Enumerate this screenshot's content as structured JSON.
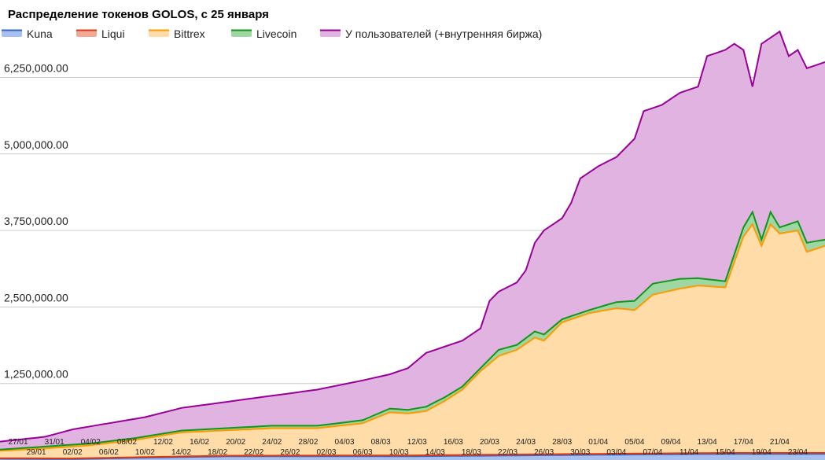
{
  "chart_data": {
    "type": "area",
    "stacked": true,
    "title": "Распределение токенов GOLOS, с 25 января",
    "xlabel": "",
    "ylabel": "",
    "ylim": [
      0,
      7000000
    ],
    "yticks": [
      1250000,
      2500000,
      3750000,
      5000000,
      6250000
    ],
    "ytick_labels": [
      "1,250,000.00",
      "2,500,000.00",
      "3,750,000.00",
      "5,000,000.00",
      "6,250,000.00"
    ],
    "grid": true,
    "legend_position": "top",
    "xtick_labels_upper": [
      "27/01",
      "31/01",
      "04/02",
      "08/02",
      "12/02",
      "16/02",
      "20/02",
      "24/02",
      "28/02",
      "04/03",
      "08/03",
      "12/03",
      "16/03",
      "20/03",
      "24/03",
      "28/03",
      "01/04",
      "05/04",
      "09/04",
      "13/04",
      "17/04",
      "21/04"
    ],
    "xtick_labels_lower": [
      "29/01",
      "02/02",
      "06/02",
      "10/02",
      "14/02",
      "18/02",
      "22/02",
      "26/02",
      "02/03",
      "06/03",
      "10/03",
      "14/03",
      "18/03",
      "22/03",
      "26/03",
      "30/03",
      "03/04",
      "07/04",
      "11/04",
      "15/04",
      "19/04",
      "23/04"
    ],
    "series": [
      {
        "name": "Kuna",
        "color": "#3366cc",
        "fill": "#a7c0ee",
        "cumulative": [
          [
            0,
            20000
          ],
          [
            8,
            15000
          ],
          [
            15,
            35000
          ],
          [
            25,
            60000
          ],
          [
            45,
            60000
          ],
          [
            61,
            80000
          ],
          [
            70,
            90000
          ],
          [
            80,
            100000
          ],
          [
            90,
            100000
          ]
        ]
      },
      {
        "name": "Liqui",
        "color": "#dc3912",
        "fill": "#f2aa96",
        "cumulative": [
          [
            0,
            30000
          ],
          [
            8,
            25000
          ],
          [
            15,
            45000
          ],
          [
            25,
            70000
          ],
          [
            45,
            75000
          ],
          [
            61,
            95000
          ],
          [
            70,
            105000
          ],
          [
            80,
            115000
          ],
          [
            90,
            115000
          ]
        ]
      },
      {
        "name": "Bittrex",
        "color": "#ff9900",
        "fill": "#ffdca8",
        "cumulative": [
          [
            0,
            150000
          ],
          [
            5,
            190000
          ],
          [
            10,
            240000
          ],
          [
            15,
            330000
          ],
          [
            20,
            450000
          ],
          [
            30,
            520000
          ],
          [
            35,
            520000
          ],
          [
            40,
            600000
          ],
          [
            43,
            780000
          ],
          [
            45,
            760000
          ],
          [
            47,
            800000
          ],
          [
            49,
            960000
          ],
          [
            51,
            1150000
          ],
          [
            53,
            1450000
          ],
          [
            55,
            1700000
          ],
          [
            57,
            1800000
          ],
          [
            59,
            2000000
          ],
          [
            60,
            1950000
          ],
          [
            62,
            2250000
          ],
          [
            65,
            2400000
          ],
          [
            68,
            2480000
          ],
          [
            70,
            2450000
          ],
          [
            72,
            2700000
          ],
          [
            75,
            2800000
          ],
          [
            77,
            2850000
          ],
          [
            80,
            2820000
          ],
          [
            82,
            3650000
          ],
          [
            83,
            3850000
          ],
          [
            84,
            3500000
          ],
          [
            85,
            3850000
          ],
          [
            86,
            3700000
          ],
          [
            88,
            3750000
          ],
          [
            89,
            3400000
          ],
          [
            91,
            3500000
          ]
        ]
      },
      {
        "name": "Livecoin",
        "color": "#109618",
        "fill": "#9fd7a3",
        "cumulative": [
          [
            0,
            170000
          ],
          [
            5,
            220000
          ],
          [
            10,
            270000
          ],
          [
            15,
            360000
          ],
          [
            20,
            480000
          ],
          [
            30,
            560000
          ],
          [
            35,
            560000
          ],
          [
            40,
            650000
          ],
          [
            43,
            840000
          ],
          [
            45,
            820000
          ],
          [
            47,
            870000
          ],
          [
            49,
            1020000
          ],
          [
            51,
            1200000
          ],
          [
            53,
            1500000
          ],
          [
            55,
            1800000
          ],
          [
            57,
            1880000
          ],
          [
            59,
            2100000
          ],
          [
            60,
            2050000
          ],
          [
            62,
            2300000
          ],
          [
            65,
            2450000
          ],
          [
            68,
            2580000
          ],
          [
            70,
            2600000
          ],
          [
            72,
            2880000
          ],
          [
            75,
            2960000
          ],
          [
            77,
            2970000
          ],
          [
            80,
            2920000
          ],
          [
            82,
            3800000
          ],
          [
            83,
            4050000
          ],
          [
            84,
            3600000
          ],
          [
            85,
            4050000
          ],
          [
            86,
            3800000
          ],
          [
            88,
            3900000
          ],
          [
            89,
            3550000
          ],
          [
            91,
            3600000
          ]
        ]
      },
      {
        "name": "У пользователей (+внутренняя биржа)",
        "color": "#990099",
        "fill": "#e0b3e0",
        "cumulative": [
          [
            0,
            300000
          ],
          [
            5,
            380000
          ],
          [
            8,
            500000
          ],
          [
            12,
            600000
          ],
          [
            16,
            700000
          ],
          [
            20,
            850000
          ],
          [
            25,
            950000
          ],
          [
            30,
            1050000
          ],
          [
            35,
            1150000
          ],
          [
            40,
            1300000
          ],
          [
            43,
            1400000
          ],
          [
            45,
            1500000
          ],
          [
            47,
            1750000
          ],
          [
            49,
            1850000
          ],
          [
            51,
            1950000
          ],
          [
            53,
            2150000
          ],
          [
            54,
            2600000
          ],
          [
            55,
            2750000
          ],
          [
            57,
            2900000
          ],
          [
            58,
            3100000
          ],
          [
            59,
            3550000
          ],
          [
            60,
            3750000
          ],
          [
            62,
            3950000
          ],
          [
            63,
            4200000
          ],
          [
            64,
            4600000
          ],
          [
            66,
            4800000
          ],
          [
            68,
            4950000
          ],
          [
            70,
            5250000
          ],
          [
            71,
            5700000
          ],
          [
            73,
            5800000
          ],
          [
            75,
            6000000
          ],
          [
            77,
            6100000
          ],
          [
            78,
            6600000
          ],
          [
            80,
            6700000
          ],
          [
            81,
            6800000
          ],
          [
            82,
            6700000
          ],
          [
            83,
            6100000
          ],
          [
            84,
            6800000
          ],
          [
            86,
            7000000
          ],
          [
            87,
            6600000
          ],
          [
            88,
            6700000
          ],
          [
            89,
            6400000
          ],
          [
            91,
            6500000
          ]
        ]
      }
    ]
  }
}
